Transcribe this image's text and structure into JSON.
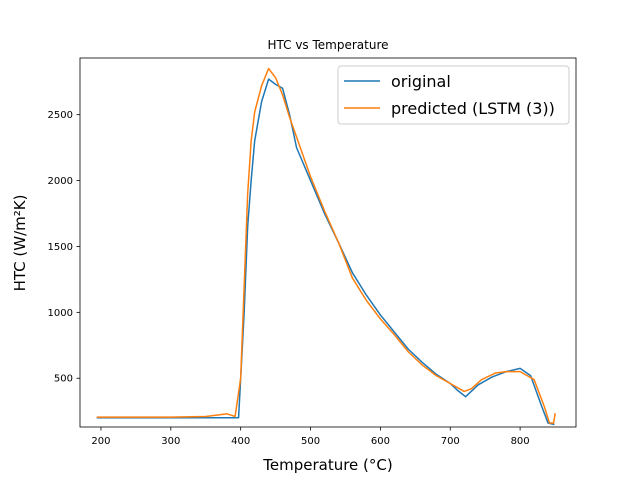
{
  "chart_data": {
    "type": "line",
    "title": "HTC vs Temperature",
    "xlabel": "Temperature (°C)",
    "ylabel": "HTC (W/m²K)",
    "xlim": [
      170,
      880
    ],
    "ylim": [
      130,
      2930
    ],
    "xticks": [
      200,
      300,
      400,
      500,
      600,
      700,
      800
    ],
    "yticks": [
      500,
      1000,
      1500,
      2000,
      2500
    ],
    "grid": false,
    "legend_position": "upper right",
    "series": [
      {
        "name": "original",
        "color": "#1f77b4",
        "points": [
          [
            195,
            200
          ],
          [
            250,
            200
          ],
          [
            300,
            200
          ],
          [
            350,
            200
          ],
          [
            397,
            200
          ],
          [
            405,
            1000
          ],
          [
            410,
            1650
          ],
          [
            415,
            2000
          ],
          [
            420,
            2300
          ],
          [
            430,
            2600
          ],
          [
            440,
            2770
          ],
          [
            450,
            2730
          ],
          [
            460,
            2700
          ],
          [
            470,
            2500
          ],
          [
            480,
            2250
          ],
          [
            500,
            2000
          ],
          [
            520,
            1750
          ],
          [
            540,
            1530
          ],
          [
            560,
            1300
          ],
          [
            580,
            1130
          ],
          [
            600,
            980
          ],
          [
            620,
            850
          ],
          [
            640,
            720
          ],
          [
            660,
            620
          ],
          [
            680,
            530
          ],
          [
            700,
            460
          ],
          [
            710,
            410
          ],
          [
            722,
            360
          ],
          [
            740,
            450
          ],
          [
            760,
            510
          ],
          [
            780,
            550
          ],
          [
            800,
            575
          ],
          [
            815,
            520
          ],
          [
            830,
            300
          ],
          [
            840,
            160
          ],
          [
            848,
            150
          ]
        ]
      },
      {
        "name": "predicted (LSTM (3))",
        "color": "#ff7f0e",
        "points": [
          [
            195,
            205
          ],
          [
            250,
            205
          ],
          [
            300,
            205
          ],
          [
            350,
            210
          ],
          [
            380,
            230
          ],
          [
            392,
            210
          ],
          [
            400,
            500
          ],
          [
            405,
            1200
          ],
          [
            410,
            1900
          ],
          [
            415,
            2300
          ],
          [
            420,
            2520
          ],
          [
            430,
            2720
          ],
          [
            440,
            2850
          ],
          [
            450,
            2780
          ],
          [
            460,
            2650
          ],
          [
            470,
            2480
          ],
          [
            490,
            2180
          ],
          [
            500,
            2030
          ],
          [
            520,
            1770
          ],
          [
            540,
            1530
          ],
          [
            560,
            1260
          ],
          [
            580,
            1090
          ],
          [
            600,
            950
          ],
          [
            620,
            830
          ],
          [
            640,
            700
          ],
          [
            660,
            600
          ],
          [
            680,
            520
          ],
          [
            700,
            460
          ],
          [
            720,
            400
          ],
          [
            730,
            420
          ],
          [
            745,
            490
          ],
          [
            765,
            540
          ],
          [
            780,
            550
          ],
          [
            800,
            550
          ],
          [
            820,
            490
          ],
          [
            835,
            280
          ],
          [
            842,
            160
          ],
          [
            848,
            160
          ],
          [
            850,
            230
          ]
        ]
      }
    ]
  }
}
